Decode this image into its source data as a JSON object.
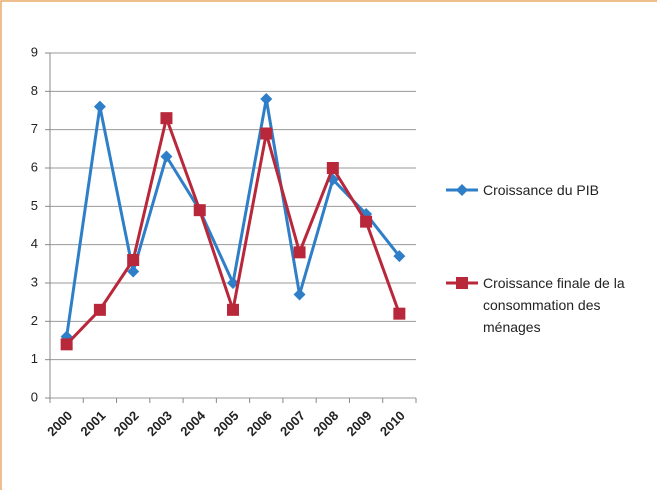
{
  "chart_data": {
    "type": "line",
    "categories": [
      "2000",
      "2001",
      "2002",
      "2003",
      "2004",
      "2005",
      "2006",
      "2007",
      "2008",
      "2009",
      "2010"
    ],
    "series": [
      {
        "name": "Croissance du PIB",
        "color": "#2f7fc8",
        "marker": "diamond",
        "values": [
          1.6,
          7.6,
          3.3,
          6.3,
          4.9,
          3.0,
          7.8,
          2.7,
          5.7,
          4.8,
          3.7
        ]
      },
      {
        "name": "Croissance finale de la consommation des ménages",
        "color": "#b8283a",
        "marker": "square",
        "values": [
          1.4,
          2.3,
          3.6,
          7.3,
          4.9,
          2.3,
          6.9,
          3.8,
          6.0,
          4.6,
          2.2
        ]
      }
    ],
    "ylim": [
      0,
      9
    ],
    "yticks": [
      0,
      1,
      2,
      3,
      4,
      5,
      6,
      7,
      8,
      9
    ],
    "grid": true
  }
}
